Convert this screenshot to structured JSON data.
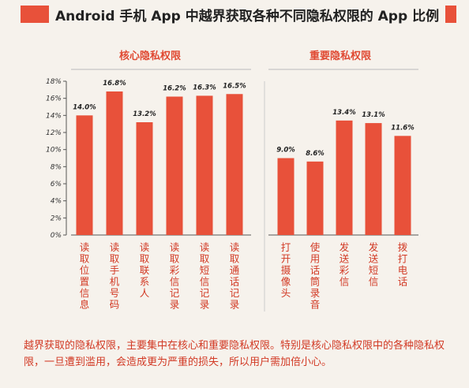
{
  "title": "Android 手机 App 中越界获取各种不同隐私权限的 App 比例",
  "chart_data": {
    "type": "bar",
    "ylim": [
      0,
      18
    ],
    "yticks": [
      "0%",
      "2%",
      "4%",
      "6%",
      "8%",
      "10%",
      "12%",
      "14%",
      "16%",
      "18%"
    ],
    "groups": [
      {
        "name": "核心隐私权限",
        "categories": [
          "读取位置信息",
          "读取手机号码",
          "读取联系人",
          "读取彩信记录",
          "读取短信记录",
          "读取通话记录"
        ],
        "values": [
          14.0,
          16.8,
          13.2,
          16.2,
          16.3,
          16.5
        ],
        "labels": [
          "14.0%",
          "16.8%",
          "13.2%",
          "16.2%",
          "16.3%",
          "16.5%"
        ]
      },
      {
        "name": "重要隐私权限",
        "categories": [
          "打开摄像头",
          "使用话筒录音",
          "发送彩信",
          "发送短信",
          "拨打电话"
        ],
        "values": [
          9.0,
          8.6,
          13.4,
          13.1,
          11.6
        ],
        "labels": [
          "9.0%",
          "8.6%",
          "13.4%",
          "13.1%",
          "11.6%"
        ]
      }
    ],
    "bar_color": "#e8513a",
    "grid": false
  },
  "footnote": "越界获取的隐私权限，主要集中在核心和重要隐私权限。特别是核心隐私权限中的各种隐私权限，一旦遭到滥用，会造成更为严重的损失，所以用户需加倍小心。"
}
